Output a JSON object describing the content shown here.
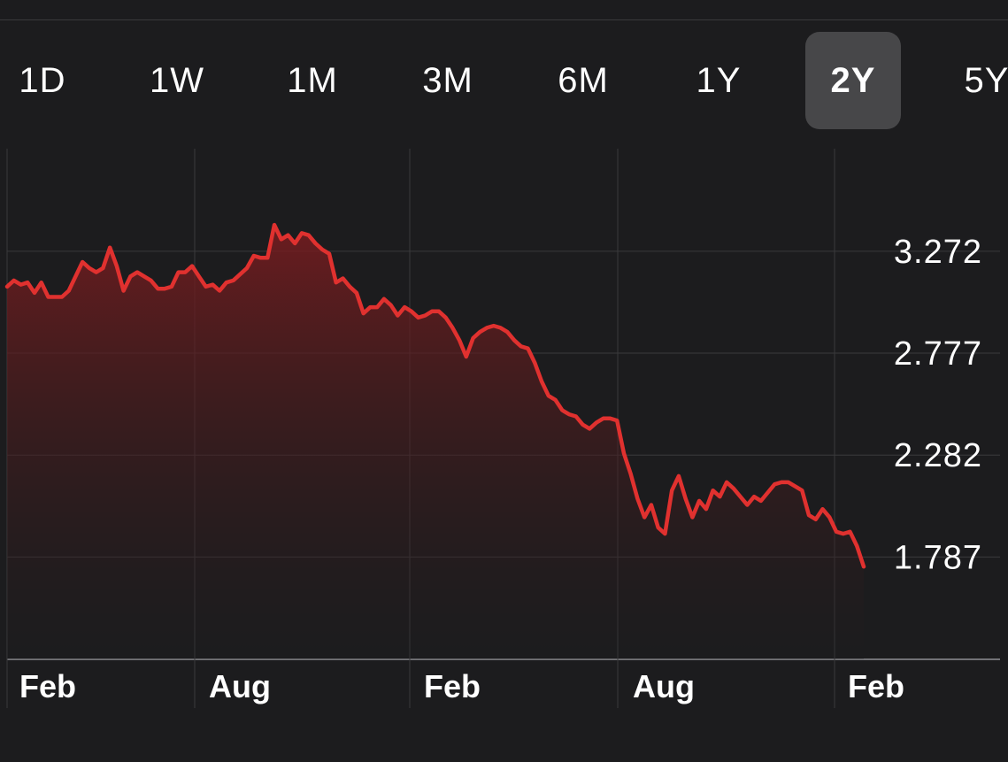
{
  "range_selector": {
    "options": [
      "1D",
      "1W",
      "1M",
      "3M",
      "6M",
      "1Y",
      "2Y",
      "5Y"
    ],
    "selected": "2Y"
  },
  "colors": {
    "background": "#1c1c1e",
    "line": "#e0312f",
    "grid": "#3a3a3c",
    "selected_button": "#474749"
  },
  "chart_data": {
    "type": "area",
    "title": "",
    "xlabel": "",
    "ylabel": "",
    "y_axis_position": "right",
    "y_ticks": [
      3.272,
      2.777,
      2.282,
      1.787
    ],
    "y_tick_labels": [
      "3.272",
      "2.777",
      "2.282",
      "1.787"
    ],
    "x_tick_labels": [
      "Feb",
      "Aug",
      "Feb",
      "Aug",
      "Feb"
    ],
    "ylim": [
      1.29,
      3.77
    ],
    "grid": true,
    "series": [
      {
        "values": [
          3.1,
          3.13,
          3.11,
          3.12,
          3.07,
          3.12,
          3.05,
          3.05,
          3.05,
          3.08,
          3.15,
          3.22,
          3.19,
          3.17,
          3.19,
          3.29,
          3.2,
          3.08,
          3.15,
          3.17,
          3.15,
          3.13,
          3.09,
          3.09,
          3.1,
          3.17,
          3.17,
          3.2,
          3.15,
          3.1,
          3.11,
          3.08,
          3.12,
          3.13,
          3.16,
          3.19,
          3.25,
          3.24,
          3.24,
          3.4,
          3.33,
          3.35,
          3.31,
          3.36,
          3.35,
          3.31,
          3.28,
          3.26,
          3.12,
          3.14,
          3.1,
          3.07,
          2.97,
          3.0,
          3.0,
          3.04,
          3.01,
          2.96,
          3.0,
          2.98,
          2.95,
          2.96,
          2.98,
          2.98,
          2.95,
          2.9,
          2.84,
          2.76,
          2.85,
          2.88,
          2.9,
          2.91,
          2.9,
          2.88,
          2.84,
          2.81,
          2.8,
          2.73,
          2.64,
          2.57,
          2.55,
          2.5,
          2.48,
          2.47,
          2.43,
          2.41,
          2.44,
          2.46,
          2.46,
          2.45,
          2.29,
          2.19,
          2.07,
          1.98,
          2.04,
          1.93,
          1.9,
          2.11,
          2.18,
          2.07,
          1.98,
          2.06,
          2.02,
          2.11,
          2.08,
          2.15,
          2.12,
          2.08,
          2.04,
          2.08,
          2.06,
          2.1,
          2.14,
          2.15,
          2.15,
          2.13,
          2.11,
          1.99,
          1.97,
          2.02,
          1.98,
          1.91,
          1.9,
          1.91,
          1.84,
          1.74
        ],
        "points_x": [
          0.0,
          0.004,
          0.012,
          0.02,
          0.03,
          0.04,
          0.046,
          0.054,
          0.064,
          0.074,
          0.082,
          0.088,
          0.098,
          0.108,
          0.116,
          0.124,
          0.134,
          0.142,
          0.15,
          0.16,
          0.17,
          0.178,
          0.188,
          0.198,
          0.206,
          0.214,
          0.222,
          0.23,
          0.238,
          0.246,
          0.254,
          0.264,
          0.272,
          0.28,
          0.288,
          0.296,
          0.306,
          0.314,
          0.322,
          0.33,
          0.338,
          0.346,
          0.354,
          0.362,
          0.37,
          0.378,
          0.386,
          0.394,
          0.402,
          0.41,
          0.418,
          0.426,
          0.434,
          0.442,
          0.45,
          0.458,
          0.466,
          0.474,
          0.482,
          0.49,
          0.498,
          0.506,
          0.514,
          0.522,
          0.53,
          0.538,
          0.546,
          0.554,
          0.562,
          0.57,
          0.578,
          0.586,
          0.594,
          0.602,
          0.61,
          0.618,
          0.626,
          0.634,
          0.642,
          0.65,
          0.658,
          0.666,
          0.674,
          0.682,
          0.69,
          0.698,
          0.706,
          0.714,
          0.722,
          0.73,
          0.738,
          0.746,
          0.754,
          0.762,
          0.77,
          0.778,
          0.786,
          0.794,
          0.802,
          0.81,
          0.818,
          0.826,
          0.834,
          0.842,
          0.85,
          0.858,
          0.866,
          0.874,
          0.882,
          0.89,
          0.898,
          0.906,
          0.914,
          0.922,
          0.93,
          0.938,
          0.946,
          0.954,
          0.962,
          0.97,
          0.978,
          0.986,
          0.994,
          0.998,
          1.0,
          1.0
        ]
      }
    ]
  }
}
